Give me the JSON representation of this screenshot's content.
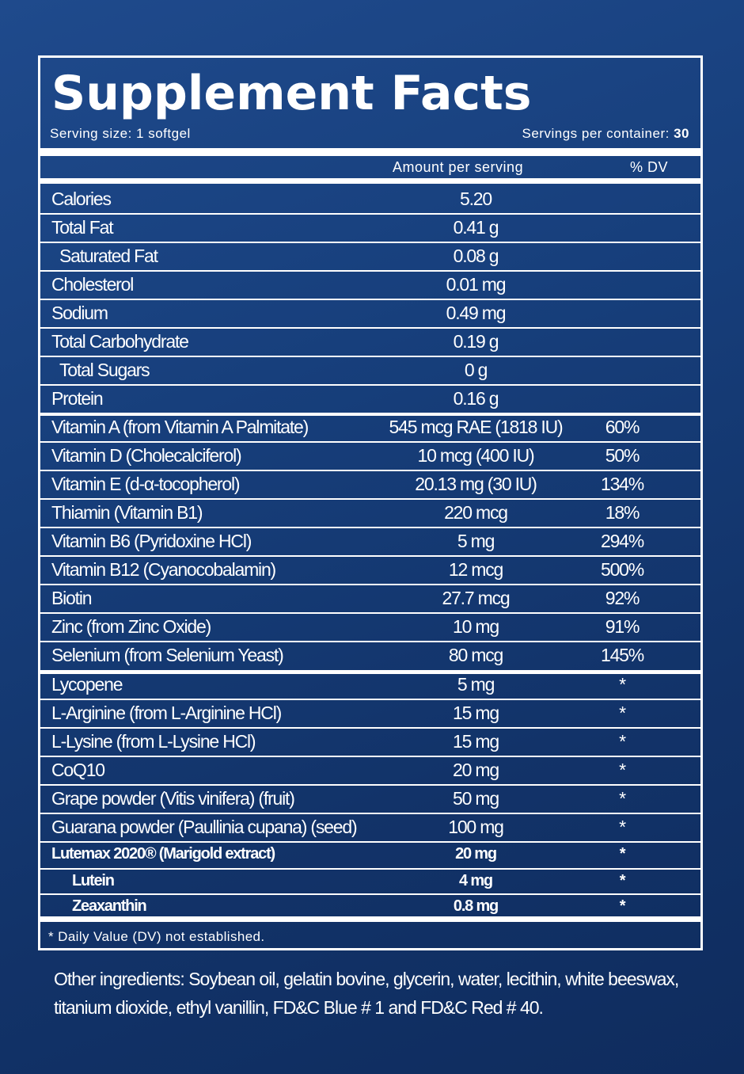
{
  "title": "Supplement Facts",
  "serving_size": "Serving size: 1 softgel",
  "servings_per_container_label": "Servings per container:",
  "servings_per_container_value": "30",
  "header": {
    "amount": "Amount per serving",
    "dv": "% DV"
  },
  "rows": [
    {
      "name": "Calories",
      "amount": "5.20",
      "dv": ""
    },
    {
      "name": "Total Fat",
      "amount": "0.41 g",
      "dv": ""
    },
    {
      "name": "Saturated Fat",
      "amount": "0.08 g",
      "dv": ""
    },
    {
      "name": "Cholesterol",
      "amount": "0.01 mg",
      "dv": ""
    },
    {
      "name": "Sodium",
      "amount": "0.49 mg",
      "dv": ""
    },
    {
      "name": "Total Carbohydrate",
      "amount": "0.19 g",
      "dv": ""
    },
    {
      "name": "Total Sugars",
      "amount": "0 g",
      "dv": ""
    },
    {
      "name": "Protein",
      "amount": "0.16 g",
      "dv": ""
    },
    {
      "name": "Vitamin A (from Vitamin A Palmitate)",
      "amount": "545 mcg RAE (1818 IU)",
      "dv": "60%"
    },
    {
      "name": "Vitamin D (Cholecalciferol)",
      "amount": "10 mcg (400 IU)",
      "dv": "50%"
    },
    {
      "name": "Vitamin E (d-α-tocopherol)",
      "amount": "20.13 mg (30 IU)",
      "dv": "134%"
    },
    {
      "name": "Thiamin (Vitamin B1)",
      "amount": "220 mcg",
      "dv": "18%"
    },
    {
      "name": "Vitamin B6 (Pyridoxine HCl)",
      "amount": "5 mg",
      "dv": "294%"
    },
    {
      "name": "Vitamin B12 (Cyanocobalamin)",
      "amount": "12 mcg",
      "dv": "500%"
    },
    {
      "name": "Biotin",
      "amount": "27.7 mcg",
      "dv": "92%"
    },
    {
      "name": "Zinc (from Zinc Oxide)",
      "amount": "10 mg",
      "dv": "91%"
    },
    {
      "name": "Selenium (from Selenium Yeast)",
      "amount": "80 mcg",
      "dv": "145%"
    },
    {
      "name": "Lycopene",
      "amount": "5 mg",
      "dv": "*"
    },
    {
      "name": "L-Arginine (from L-Arginine HCl)",
      "amount": "15 mg",
      "dv": "*"
    },
    {
      "name": "L-Lysine (from L-Lysine HCl)",
      "amount": "15 mg",
      "dv": "*"
    },
    {
      "name": "CoQ10",
      "amount": "20 mg",
      "dv": "*"
    },
    {
      "name": "Grape powder (Vitis vinifera) (fruit)",
      "amount": "50 mg",
      "dv": "*"
    },
    {
      "name": "Guarana powder (Paullinia cupana) (seed)",
      "amount": "100 mg",
      "dv": "*"
    },
    {
      "name": "Lutemax 2020® (Marigold extract)",
      "amount": "20 mg",
      "dv": "*"
    },
    {
      "name": "Lutein",
      "amount": "4 mg",
      "dv": "*"
    },
    {
      "name": "Zeaxanthin",
      "amount": "0.8 mg",
      "dv": "*"
    }
  ],
  "footnote": "* Daily Value (DV) not established.",
  "other_ingredients": "Other ingredients: Soybean oil, gelatin bovine, glycerin, water, lecithin, white beeswax, titanium dioxide, ethyl vanillin, FD&C Blue # 1 and FD&C Red # 40.",
  "colors": {
    "background": "#173f7c",
    "text": "#ffffff"
  }
}
